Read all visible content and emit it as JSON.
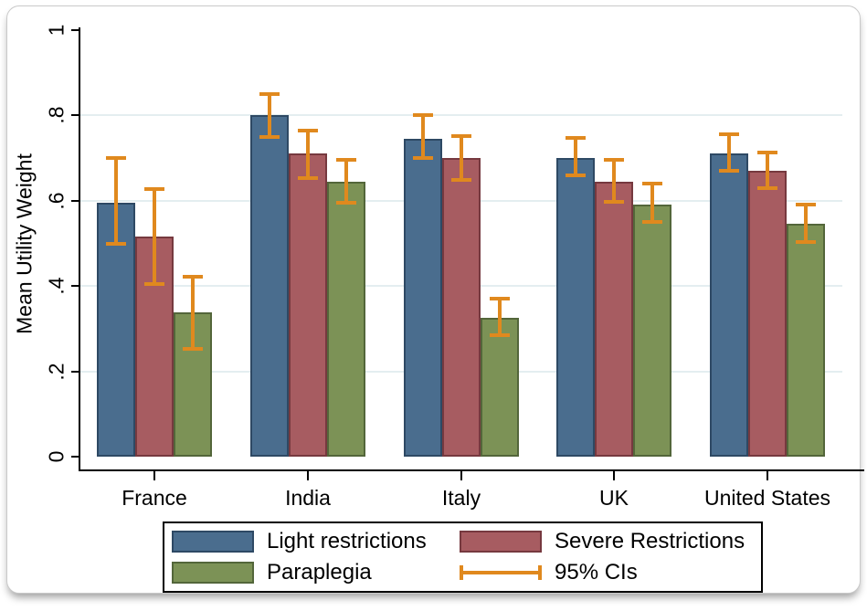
{
  "chart_data": {
    "type": "bar",
    "ylabel": "Mean Utility Weight",
    "ylim": [
      0,
      1
    ],
    "yticks": [
      0,
      0.2,
      0.4,
      0.6,
      0.8,
      1
    ],
    "ytick_labels": [
      "0",
      ".2",
      ".4",
      ".6",
      ".8",
      "1"
    ],
    "gridline_values": [
      0.2,
      0.4,
      0.6,
      0.8
    ],
    "grid": true,
    "categories": [
      "France",
      "India",
      "Italy",
      "UK",
      "United States"
    ],
    "series": [
      {
        "name": "Light restrictions",
        "color": "#4a6d8e",
        "border_color": "#2e4964",
        "values": [
          0.595,
          0.8,
          0.745,
          0.7,
          0.71
        ],
        "ci_low": [
          0.5,
          0.75,
          0.7,
          0.66,
          0.67
        ],
        "ci_high": [
          0.7,
          0.85,
          0.8,
          0.747,
          0.756
        ]
      },
      {
        "name": "Severe Restrictions",
        "color": "#a75c61",
        "border_color": "#76393f",
        "values": [
          0.515,
          0.71,
          0.7,
          0.645,
          0.67
        ],
        "ci_low": [
          0.405,
          0.653,
          0.649,
          0.597,
          0.63
        ],
        "ci_high": [
          0.628,
          0.764,
          0.752,
          0.696,
          0.713
        ]
      },
      {
        "name": "Paraplegia",
        "color": "#7c9256",
        "border_color": "#53663a",
        "values": [
          0.338,
          0.645,
          0.325,
          0.59,
          0.545
        ],
        "ci_low": [
          0.252,
          0.595,
          0.285,
          0.55,
          0.503
        ],
        "ci_high": [
          0.422,
          0.696,
          0.37,
          0.64,
          0.59
        ]
      }
    ],
    "ci_color": "#e0891e",
    "ci_legend_label": "95% CIs",
    "legend_position": "bottom"
  }
}
